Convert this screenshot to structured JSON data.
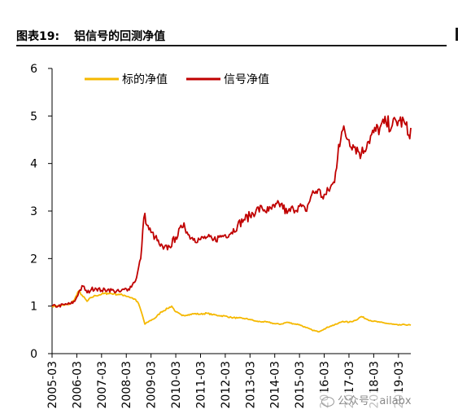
{
  "header": {
    "figure_label": "图表19:",
    "title": "铝信号的回测净值"
  },
  "watermark": {
    "prefix": "公众号 ·",
    "account": "ailabx"
  },
  "chart_data": {
    "type": "line",
    "title": "",
    "xlabel": "",
    "ylabel": "",
    "ylim": [
      0,
      6
    ],
    "yticks": [
      0,
      1,
      2,
      3,
      4,
      5,
      6
    ],
    "xlim": [
      "2005-03",
      "2019-09"
    ],
    "xticks": [
      "2005-03",
      "2006-03",
      "2007-03",
      "2008-03",
      "2009-03",
      "2010-03",
      "2011-03",
      "2012-03",
      "2013-03",
      "2014-03",
      "2015-03",
      "2016-03",
      "2017-03",
      "2018-03",
      "2019-03"
    ],
    "grid": false,
    "legend_position": "top-left",
    "series": [
      {
        "name": "标的净值",
        "color": "#F5B800",
        "points": [
          [
            "2005-03",
            1.0
          ],
          [
            "2005-06",
            1.0
          ],
          [
            "2005-09",
            1.02
          ],
          [
            "2005-12",
            1.05
          ],
          [
            "2006-02",
            1.15
          ],
          [
            "2006-04",
            1.32
          ],
          [
            "2006-06",
            1.2
          ],
          [
            "2006-08",
            1.1
          ],
          [
            "2006-10",
            1.18
          ],
          [
            "2006-12",
            1.22
          ],
          [
            "2007-03",
            1.25
          ],
          [
            "2007-06",
            1.27
          ],
          [
            "2007-09",
            1.26
          ],
          [
            "2007-12",
            1.24
          ],
          [
            "2008-02",
            1.23
          ],
          [
            "2008-04",
            1.2
          ],
          [
            "2008-07",
            1.15
          ],
          [
            "2008-09",
            1.05
          ],
          [
            "2008-11",
            0.78
          ],
          [
            "2008-12",
            0.62
          ],
          [
            "2009-02",
            0.68
          ],
          [
            "2009-05",
            0.75
          ],
          [
            "2009-08",
            0.88
          ],
          [
            "2009-11",
            0.95
          ],
          [
            "2010-01",
            1.0
          ],
          [
            "2010-03",
            0.88
          ],
          [
            "2010-06",
            0.8
          ],
          [
            "2010-09",
            0.82
          ],
          [
            "2010-12",
            0.84
          ],
          [
            "2011-03",
            0.83
          ],
          [
            "2011-06",
            0.85
          ],
          [
            "2011-09",
            0.82
          ],
          [
            "2011-12",
            0.8
          ],
          [
            "2012-03",
            0.79
          ],
          [
            "2012-06",
            0.76
          ],
          [
            "2012-09",
            0.75
          ],
          [
            "2012-12",
            0.74
          ],
          [
            "2013-03",
            0.72
          ],
          [
            "2013-06",
            0.68
          ],
          [
            "2013-09",
            0.67
          ],
          [
            "2013-12",
            0.66
          ],
          [
            "2014-03",
            0.63
          ],
          [
            "2014-06",
            0.62
          ],
          [
            "2014-09",
            0.66
          ],
          [
            "2014-12",
            0.63
          ],
          [
            "2015-03",
            0.61
          ],
          [
            "2015-06",
            0.55
          ],
          [
            "2015-09",
            0.5
          ],
          [
            "2015-12",
            0.46
          ],
          [
            "2016-03",
            0.52
          ],
          [
            "2016-06",
            0.58
          ],
          [
            "2016-09",
            0.62
          ],
          [
            "2016-12",
            0.68
          ],
          [
            "2017-03",
            0.66
          ],
          [
            "2017-06",
            0.7
          ],
          [
            "2017-09",
            0.78
          ],
          [
            "2017-12",
            0.72
          ],
          [
            "2018-03",
            0.68
          ],
          [
            "2018-06",
            0.66
          ],
          [
            "2018-09",
            0.64
          ],
          [
            "2018-12",
            0.62
          ],
          [
            "2019-03",
            0.6
          ],
          [
            "2019-06",
            0.61
          ],
          [
            "2019-09",
            0.6
          ]
        ]
      },
      {
        "name": "信号净值",
        "color": "#C00000",
        "points": [
          [
            "2005-03",
            1.0
          ],
          [
            "2005-06",
            1.0
          ],
          [
            "2005-09",
            1.03
          ],
          [
            "2005-12",
            1.05
          ],
          [
            "2006-02",
            1.1
          ],
          [
            "2006-04",
            1.3
          ],
          [
            "2006-06",
            1.42
          ],
          [
            "2006-08",
            1.28
          ],
          [
            "2006-10",
            1.35
          ],
          [
            "2006-12",
            1.38
          ],
          [
            "2007-03",
            1.33
          ],
          [
            "2007-06",
            1.35
          ],
          [
            "2007-09",
            1.32
          ],
          [
            "2007-12",
            1.3
          ],
          [
            "2008-02",
            1.35
          ],
          [
            "2008-04",
            1.36
          ],
          [
            "2008-06",
            1.45
          ],
          [
            "2008-08",
            1.6
          ],
          [
            "2008-10",
            2.0
          ],
          [
            "2008-11",
            2.6
          ],
          [
            "2008-12",
            2.95
          ],
          [
            "2009-01",
            2.7
          ],
          [
            "2009-03",
            2.55
          ],
          [
            "2009-05",
            2.45
          ],
          [
            "2009-07",
            2.3
          ],
          [
            "2009-09",
            2.2
          ],
          [
            "2009-12",
            2.25
          ],
          [
            "2010-03",
            2.45
          ],
          [
            "2010-06",
            2.65
          ],
          [
            "2010-07",
            2.75
          ],
          [
            "2010-09",
            2.5
          ],
          [
            "2010-12",
            2.42
          ],
          [
            "2011-03",
            2.4
          ],
          [
            "2011-06",
            2.45
          ],
          [
            "2011-09",
            2.38
          ],
          [
            "2011-12",
            2.45
          ],
          [
            "2012-03",
            2.5
          ],
          [
            "2012-06",
            2.55
          ],
          [
            "2012-09",
            2.7
          ],
          [
            "2012-12",
            2.82
          ],
          [
            "2013-03",
            2.9
          ],
          [
            "2013-06",
            3.02
          ],
          [
            "2013-09",
            3.05
          ],
          [
            "2013-12",
            3.0
          ],
          [
            "2014-03",
            3.08
          ],
          [
            "2014-06",
            3.15
          ],
          [
            "2014-09",
            2.95
          ],
          [
            "2014-12",
            3.05
          ],
          [
            "2015-03",
            3.1
          ],
          [
            "2015-06",
            3.0
          ],
          [
            "2015-09",
            3.35
          ],
          [
            "2015-12",
            3.45
          ],
          [
            "2016-02",
            3.3
          ],
          [
            "2016-04",
            3.35
          ],
          [
            "2016-06",
            3.5
          ],
          [
            "2016-08",
            3.6
          ],
          [
            "2016-10",
            4.4
          ],
          [
            "2016-12",
            4.7
          ],
          [
            "2017-03",
            4.5
          ],
          [
            "2017-06",
            4.35
          ],
          [
            "2017-09",
            4.2
          ],
          [
            "2017-12",
            4.45
          ],
          [
            "2018-03",
            4.65
          ],
          [
            "2018-06",
            4.75
          ],
          [
            "2018-09",
            4.85
          ],
          [
            "2018-12",
            4.8
          ],
          [
            "2019-03",
            4.9
          ],
          [
            "2019-06",
            4.85
          ],
          [
            "2019-08",
            4.6
          ],
          [
            "2019-09",
            4.75
          ]
        ]
      }
    ]
  }
}
